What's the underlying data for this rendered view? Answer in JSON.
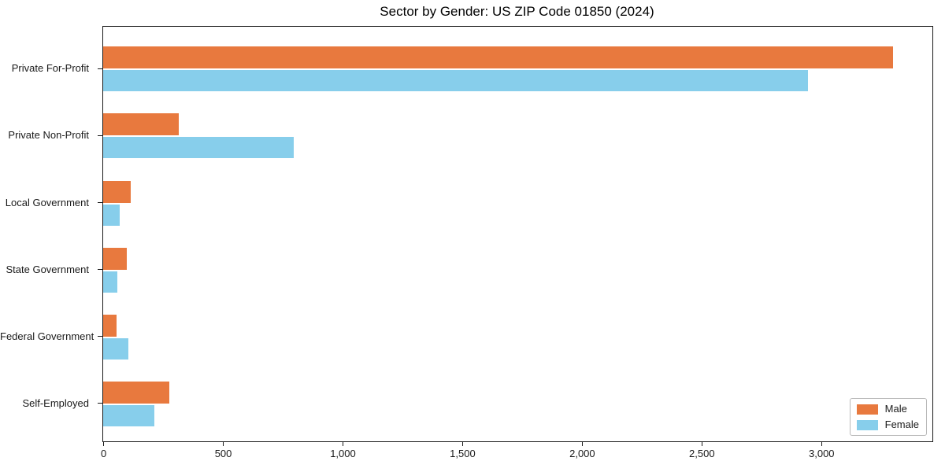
{
  "chart_data": {
    "type": "bar",
    "orientation": "horizontal",
    "title": "Sector by Gender: US ZIP Code 01850 (2024)",
    "categories": [
      "Private For-Profit",
      "Private Non-Profit",
      "Local Government",
      "State Government",
      "Federal Government",
      "Self-Employed"
    ],
    "series": [
      {
        "name": "Male",
        "color": "#e8793e",
        "values": [
          3300,
          315,
          115,
          100,
          55,
          275
        ]
      },
      {
        "name": "Female",
        "color": "#87ceeb",
        "values": [
          2945,
          795,
          70,
          60,
          105,
          215
        ]
      }
    ],
    "xlabel": "",
    "ylabel": "",
    "xlim": [
      0,
      3465
    ],
    "x_ticks": [
      0,
      500,
      1000,
      1500,
      2000,
      2500,
      3000
    ],
    "x_tick_labels": [
      "0",
      "500",
      "1,000",
      "1,500",
      "2,000",
      "2,500",
      "3,000"
    ],
    "grid": false,
    "legend": {
      "position": "lower-right"
    },
    "axis_color": "#1a1a1a",
    "background_color": "#ffffff"
  }
}
